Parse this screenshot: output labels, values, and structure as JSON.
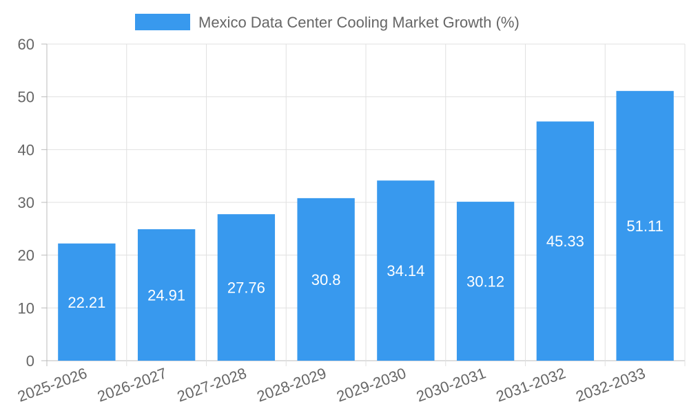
{
  "chart_data": {
    "type": "bar",
    "categories": [
      "2025-2026",
      "2026-2027",
      "2027-2028",
      "2028-2029",
      "2029-2030",
      "2030-2031",
      "2031-2032",
      "2032-2033"
    ],
    "series": [
      {
        "name": "Mexico Data Center Cooling Market Growth (%)",
        "values": [
          22.21,
          24.91,
          27.76,
          30.8,
          34.14,
          30.12,
          45.33,
          51.11
        ]
      }
    ],
    "ylim": [
      0,
      60
    ],
    "yticks": [
      "0",
      "10",
      "20",
      "30",
      "40",
      "50",
      "60"
    ],
    "grid": true,
    "legend_position": "top-center",
    "bar_color": "#3899ee"
  }
}
